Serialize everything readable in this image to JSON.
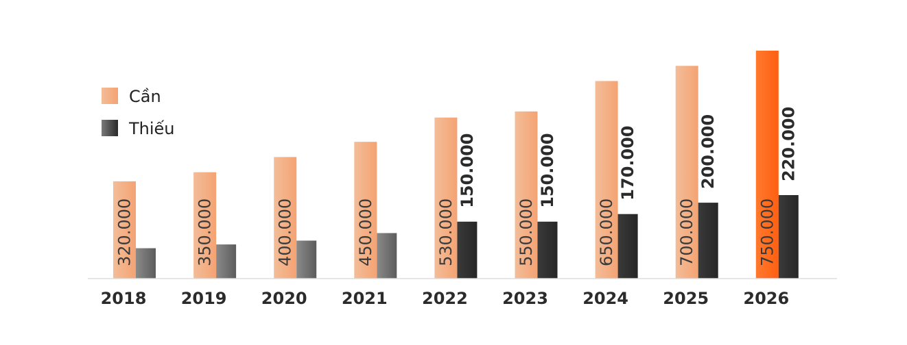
{
  "chart_data": {
    "type": "bar",
    "categories": [
      "2018",
      "2019",
      "2020",
      "2021",
      "2022",
      "2023",
      "2024",
      "2025",
      "2026"
    ],
    "series": [
      {
        "name": "Cần",
        "values": [
          320000,
          350000,
          400000,
          450000,
          530000,
          550000,
          650000,
          700000,
          750000
        ],
        "labels": [
          "320.000",
          "350.000",
          "400.000",
          "450.000",
          "530.000",
          "550.000",
          "650.000",
          "700.000",
          "750.000"
        ],
        "color": "#f4a877",
        "highlight_color": "#ff6a1a"
      },
      {
        "name": "Thiếu",
        "values": [
          80000,
          90000,
          100000,
          120000,
          150000,
          150000,
          170000,
          200000,
          220000
        ],
        "labels": [
          "",
          "",
          "",
          "",
          "150.000",
          "150.000",
          "170.000",
          "200.000",
          "220.000"
        ],
        "color": "#2d2d2d",
        "early_color": "#6a6a6a"
      }
    ],
    "legend": {
      "position": "top-left"
    },
    "ylim": [
      0,
      760000
    ],
    "grid": false
  }
}
